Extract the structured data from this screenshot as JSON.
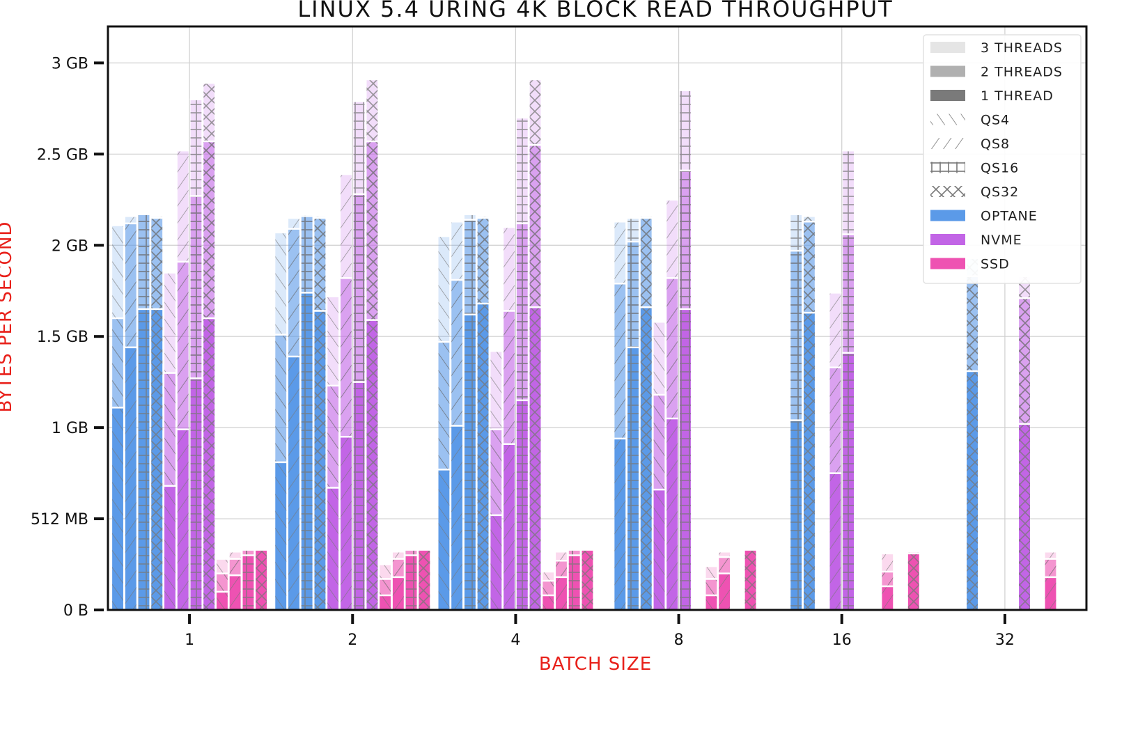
{
  "chart_data": {
    "type": "bar",
    "stacked": true,
    "title": "LINUX 5.4 URING 4K BLOCK READ THROUGHPUT",
    "xlabel": "BATCH SIZE",
    "ylabel": "BYTES PER SECOND",
    "unit": "GB",
    "ylim": [
      0,
      3.2
    ],
    "y_ticks": [
      {
        "v": 0,
        "label": "0 B"
      },
      {
        "v": 0.5,
        "label": "512 MB"
      },
      {
        "v": 1,
        "label": "1 GB"
      },
      {
        "v": 1.5,
        "label": "1.5 GB"
      },
      {
        "v": 2,
        "label": "2 GB"
      },
      {
        "v": 2.5,
        "label": "2.5 GB"
      },
      {
        "v": 3,
        "label": "3 GB"
      }
    ],
    "grid": true,
    "legend_position": "top-right",
    "categories": [
      "1",
      "2",
      "4",
      "8",
      "16",
      "32"
    ],
    "colors": {
      "OPTANE": "#5b9ae8",
      "NVME": "#c265e6",
      "SSD": "#ee52b2",
      "legend_3": "#e5e5e5",
      "legend_2": "#b0b0b0",
      "legend_1": "#7a7a7a"
    },
    "legend": [
      {
        "label": "3 THREADS",
        "kind": "thread",
        "key": "legend_3"
      },
      {
        "label": "2 THREADS",
        "kind": "thread",
        "key": "legend_2"
      },
      {
        "label": "1 THREAD",
        "kind": "thread",
        "key": "legend_1"
      },
      {
        "label": "QS4",
        "kind": "hatch",
        "key": "qs4"
      },
      {
        "label": "QS8",
        "kind": "hatch",
        "key": "qs8"
      },
      {
        "label": "QS16",
        "kind": "hatch",
        "key": "qs16"
      },
      {
        "label": "QS32",
        "kind": "hatch",
        "key": "qs32"
      },
      {
        "label": "OPTANE",
        "kind": "device",
        "key": "OPTANE"
      },
      {
        "label": "NVME",
        "kind": "device",
        "key": "NVME"
      },
      {
        "label": "SSD",
        "kind": "device",
        "key": "SSD"
      }
    ],
    "series": [
      {
        "device": "OPTANE",
        "qs": "QS4",
        "t1": [
          1.11,
          0.81,
          0.77,
          null,
          null,
          null
        ],
        "t2": [
          1.6,
          1.51,
          1.47,
          null,
          null,
          null
        ],
        "t3": [
          2.11,
          2.07,
          2.05,
          null,
          null,
          null
        ]
      },
      {
        "device": "OPTANE",
        "qs": "QS8",
        "t1": [
          1.44,
          1.39,
          1.01,
          0.94,
          null,
          null
        ],
        "t2": [
          2.12,
          2.09,
          1.81,
          1.79,
          null,
          null
        ],
        "t3": [
          2.16,
          2.15,
          2.13,
          2.13,
          null,
          null
        ]
      },
      {
        "device": "OPTANE",
        "qs": "QS16",
        "t1": [
          1.65,
          1.74,
          1.62,
          1.44,
          1.04,
          null
        ],
        "t2": [
          2.17,
          2.16,
          2.14,
          2.02,
          1.97,
          null
        ],
        "t3": [
          2.17,
          2.17,
          2.17,
          2.15,
          2.17,
          null
        ]
      },
      {
        "device": "OPTANE",
        "qs": "QS32",
        "t1": [
          1.65,
          1.64,
          1.68,
          1.66,
          1.63,
          1.31
        ],
        "t2": [
          2.15,
          2.15,
          2.15,
          2.15,
          2.13,
          1.83
        ],
        "t3": [
          2.16,
          2.16,
          2.16,
          2.16,
          2.16,
          1.93
        ]
      },
      {
        "device": "NVME",
        "qs": "QS4",
        "t1": [
          0.68,
          0.67,
          0.52,
          0.66,
          null,
          null
        ],
        "t2": [
          1.3,
          1.23,
          0.99,
          1.18,
          null,
          null
        ],
        "t3": [
          1.85,
          1.72,
          1.42,
          1.58,
          null,
          null
        ]
      },
      {
        "device": "NVME",
        "qs": "QS8",
        "t1": [
          0.99,
          0.95,
          0.91,
          1.05,
          0.75,
          null
        ],
        "t2": [
          1.91,
          1.82,
          1.64,
          1.82,
          1.33,
          null
        ],
        "t3": [
          2.52,
          2.39,
          2.1,
          2.25,
          1.74,
          null
        ]
      },
      {
        "device": "NVME",
        "qs": "QS16",
        "t1": [
          1.27,
          1.25,
          1.15,
          1.65,
          1.41,
          null
        ],
        "t2": [
          2.27,
          2.28,
          2.12,
          2.41,
          2.06,
          null
        ],
        "t3": [
          2.8,
          2.79,
          2.7,
          2.85,
          2.52,
          null
        ]
      },
      {
        "device": "NVME",
        "qs": "QS32",
        "t1": [
          1.6,
          1.59,
          1.66,
          null,
          null,
          1.02
        ],
        "t2": [
          2.57,
          2.57,
          2.55,
          null,
          null,
          1.71
        ],
        "t3": [
          2.89,
          2.91,
          2.91,
          null,
          null,
          1.83
        ]
      },
      {
        "device": "SSD",
        "qs": "QS4",
        "t1": [
          0.1,
          0.08,
          0.08,
          0.08,
          null,
          null
        ],
        "t2": [
          0.2,
          0.17,
          0.16,
          0.17,
          null,
          null
        ],
        "t3": [
          0.28,
          0.25,
          0.21,
          0.24,
          null,
          null
        ]
      },
      {
        "device": "SSD",
        "qs": "QS8",
        "t1": [
          0.19,
          0.18,
          0.18,
          0.2,
          0.13,
          0.18
        ],
        "t2": [
          0.28,
          0.28,
          0.27,
          0.29,
          0.21,
          0.28
        ],
        "t3": [
          0.32,
          0.32,
          0.32,
          0.32,
          0.31,
          0.32
        ]
      },
      {
        "device": "SSD",
        "qs": "QS16",
        "t1": [
          0.3,
          0.3,
          0.3,
          null,
          null,
          null
        ],
        "t2": [
          0.33,
          0.33,
          0.33,
          null,
          null,
          null
        ],
        "t3": [
          0.33,
          0.33,
          0.33,
          null,
          null,
          null
        ]
      },
      {
        "device": "SSD",
        "qs": "QS32",
        "t1": [
          0.33,
          0.33,
          0.33,
          0.33,
          0.31,
          null
        ],
        "t2": [
          0.33,
          0.33,
          0.33,
          0.33,
          0.32,
          null
        ],
        "t3": [
          0.33,
          0.33,
          0.33,
          0.33,
          0.32,
          null
        ]
      }
    ]
  }
}
